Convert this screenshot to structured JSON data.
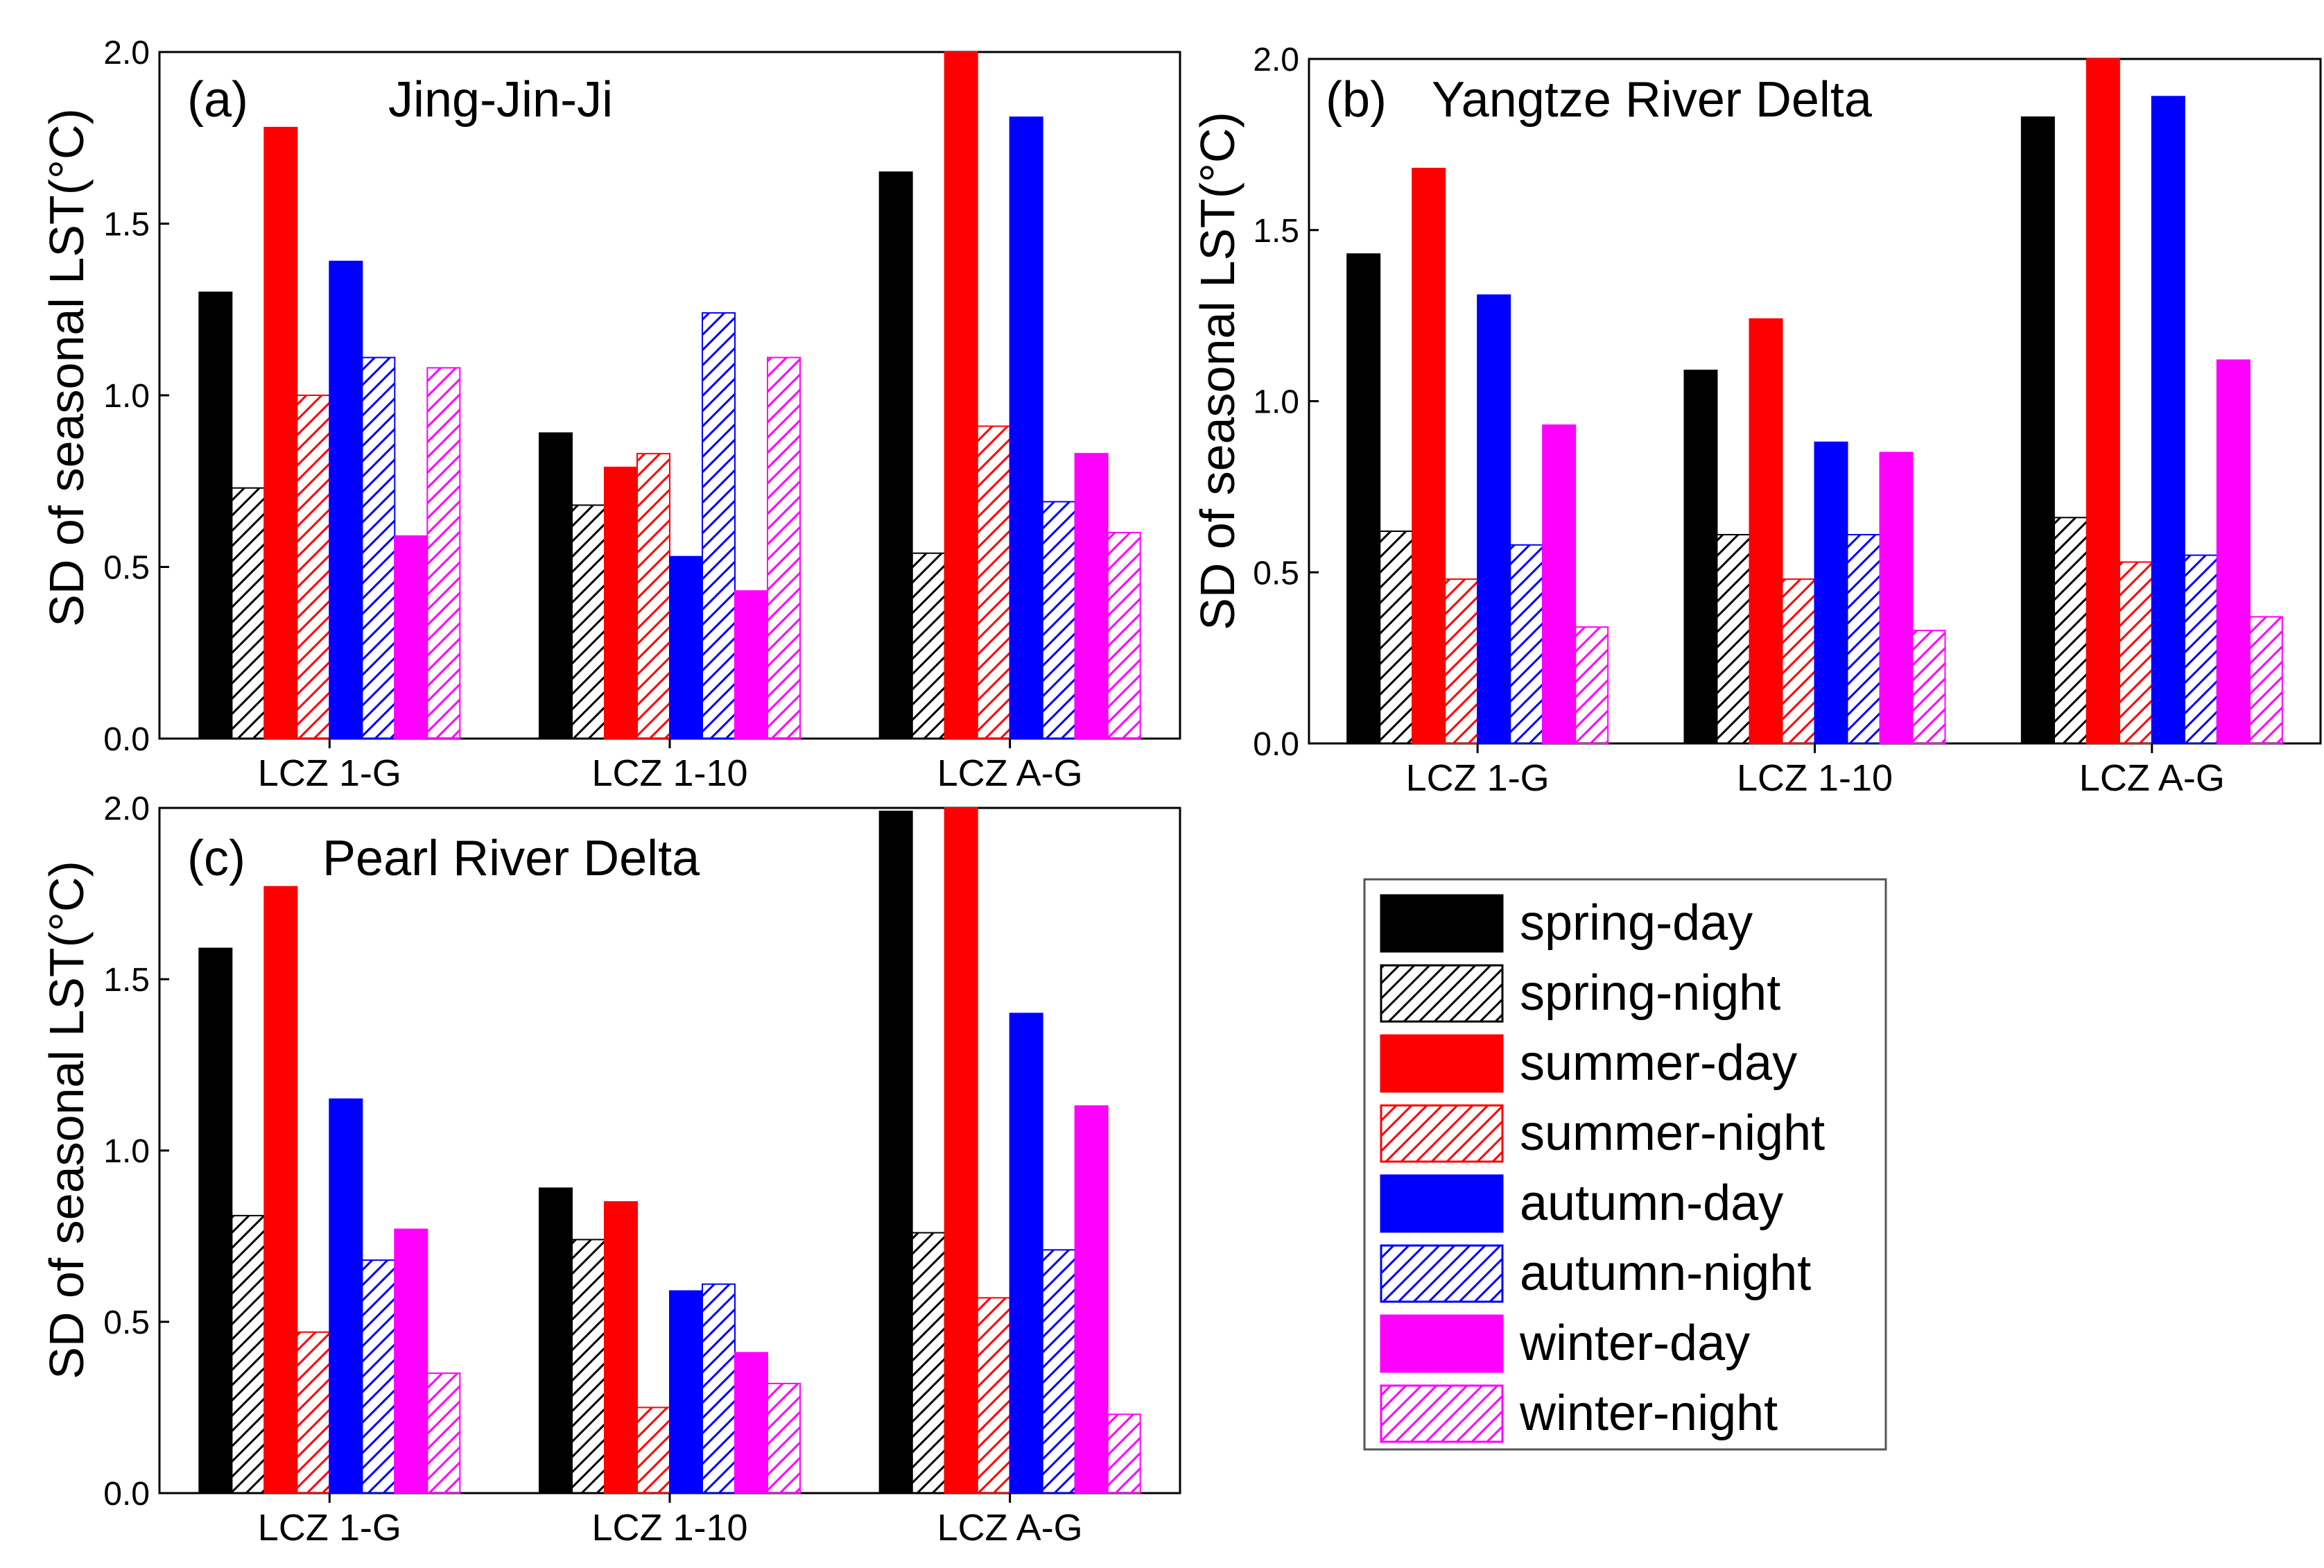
{
  "legend": {
    "entries": [
      {
        "key": "spring-day",
        "label": "spring-day",
        "color": "#000000",
        "hatched": false
      },
      {
        "key": "spring-night",
        "label": "spring-night",
        "color": "#000000",
        "hatched": true
      },
      {
        "key": "summer-day",
        "label": "summer-day",
        "color": "#ff0000",
        "hatched": false
      },
      {
        "key": "summer-night",
        "label": "summer-night",
        "color": "#ff0000",
        "hatched": true
      },
      {
        "key": "autumn-day",
        "label": "autumn-day",
        "color": "#0000ff",
        "hatched": false
      },
      {
        "key": "autumn-night",
        "label": "autumn-night",
        "color": "#0000ff",
        "hatched": true
      },
      {
        "key": "winter-day",
        "label": "winter-day",
        "color": "#ff00ff",
        "hatched": false
      },
      {
        "key": "winter-night",
        "label": "winter-night",
        "color": "#ff00ff",
        "hatched": true
      }
    ]
  },
  "chart_data": [
    {
      "type": "bar",
      "panel": "(a)",
      "title": "Jing-Jin-Ji",
      "ylabel": "SD of seasonal LST(°C)",
      "xlabel": "",
      "ylim": [
        0,
        2.0
      ],
      "yticks": [
        "0.0",
        "0.5",
        "1.0",
        "1.5",
        "2.0"
      ],
      "categories": [
        "LCZ 1-G",
        "LCZ 1-10",
        "LCZ A-G"
      ],
      "series": [
        {
          "name": "spring-day",
          "values": [
            1.3,
            0.89,
            1.65
          ]
        },
        {
          "name": "spring-night",
          "values": [
            0.73,
            0.68,
            0.54
          ]
        },
        {
          "name": "summer-day",
          "values": [
            1.78,
            0.79,
            2.0
          ]
        },
        {
          "name": "summer-night",
          "values": [
            1.0,
            0.83,
            0.91
          ]
        },
        {
          "name": "autumn-day",
          "values": [
            1.39,
            0.53,
            1.81
          ]
        },
        {
          "name": "autumn-night",
          "values": [
            1.11,
            1.24,
            0.69
          ]
        },
        {
          "name": "winter-day",
          "values": [
            0.59,
            0.43,
            0.83
          ]
        },
        {
          "name": "winter-night",
          "values": [
            1.08,
            1.11,
            0.6
          ]
        }
      ]
    },
    {
      "type": "bar",
      "panel": "(b)",
      "title": "Yangtze River Delta",
      "ylabel": "SD of seasonal LST(°C)",
      "xlabel": "",
      "ylim": [
        0,
        2.0
      ],
      "yticks": [
        "0.0",
        "0.5",
        "1.0",
        "1.5",
        "2.0"
      ],
      "categories": [
        "LCZ 1-G",
        "LCZ 1-10",
        "LCZ A-G"
      ],
      "series": [
        {
          "name": "spring-day",
          "values": [
            1.43,
            1.09,
            1.83
          ]
        },
        {
          "name": "spring-night",
          "values": [
            0.62,
            0.61,
            0.66
          ]
        },
        {
          "name": "summer-day",
          "values": [
            1.68,
            1.24,
            2.0
          ]
        },
        {
          "name": "summer-night",
          "values": [
            0.48,
            0.48,
            0.53
          ]
        },
        {
          "name": "autumn-day",
          "values": [
            1.31,
            0.88,
            1.89
          ]
        },
        {
          "name": "autumn-night",
          "values": [
            0.58,
            0.61,
            0.55
          ]
        },
        {
          "name": "winter-day",
          "values": [
            0.93,
            0.85,
            1.12
          ]
        },
        {
          "name": "winter-night",
          "values": [
            0.34,
            0.33,
            0.37
          ]
        }
      ]
    },
    {
      "type": "bar",
      "panel": "(c)",
      "title": "Pearl River Delta",
      "ylabel": "SD of seasonal LST(°C)",
      "xlabel": "",
      "ylim": [
        0,
        2.0
      ],
      "yticks": [
        "0.0",
        "0.5",
        "1.0",
        "1.5",
        "2.0"
      ],
      "categories": [
        "LCZ 1-G",
        "LCZ 1-10",
        "LCZ A-G"
      ],
      "series": [
        {
          "name": "spring-day",
          "values": [
            1.59,
            0.89,
            1.99
          ]
        },
        {
          "name": "spring-night",
          "values": [
            0.81,
            0.74,
            0.76
          ]
        },
        {
          "name": "summer-day",
          "values": [
            1.77,
            0.85,
            2.0
          ]
        },
        {
          "name": "summer-night",
          "values": [
            0.47,
            0.25,
            0.57
          ]
        },
        {
          "name": "autumn-day",
          "values": [
            1.15,
            0.59,
            1.4
          ]
        },
        {
          "name": "autumn-night",
          "values": [
            0.68,
            0.61,
            0.71
          ]
        },
        {
          "name": "winter-day",
          "values": [
            0.77,
            0.41,
            1.13
          ]
        },
        {
          "name": "winter-night",
          "values": [
            0.35,
            0.32,
            0.23
          ]
        }
      ]
    }
  ]
}
